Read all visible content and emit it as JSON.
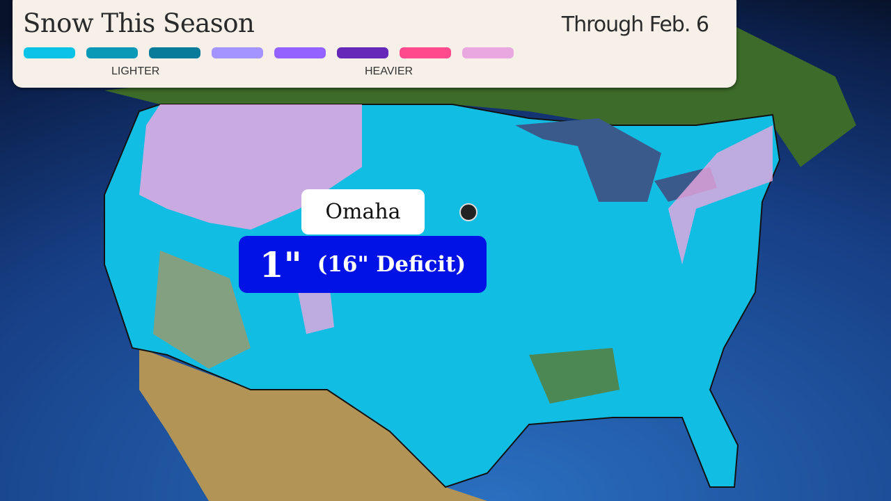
{
  "legend": {
    "title": "Snow This Season",
    "date": "Through Feb. 6",
    "colors": [
      "#0bc3e6",
      "#0a9ab8",
      "#087a9a",
      "#a394ff",
      "#9462ff",
      "#6628b8",
      "#ff4a8e",
      "#eaa8e0"
    ],
    "low_label": "LIGHTER",
    "high_label": "HEAVIER"
  },
  "callout": {
    "city": "Omaha",
    "snow_total": "1\"",
    "departure": "(16\" Deficit)"
  },
  "map_colors": {
    "ocean": "#1e4f9a",
    "land_canada": "#3d6b2a",
    "land_mexico": "#b99a5a",
    "snow_base": "#12bde3",
    "great_lakes": "#3a5a8c"
  }
}
